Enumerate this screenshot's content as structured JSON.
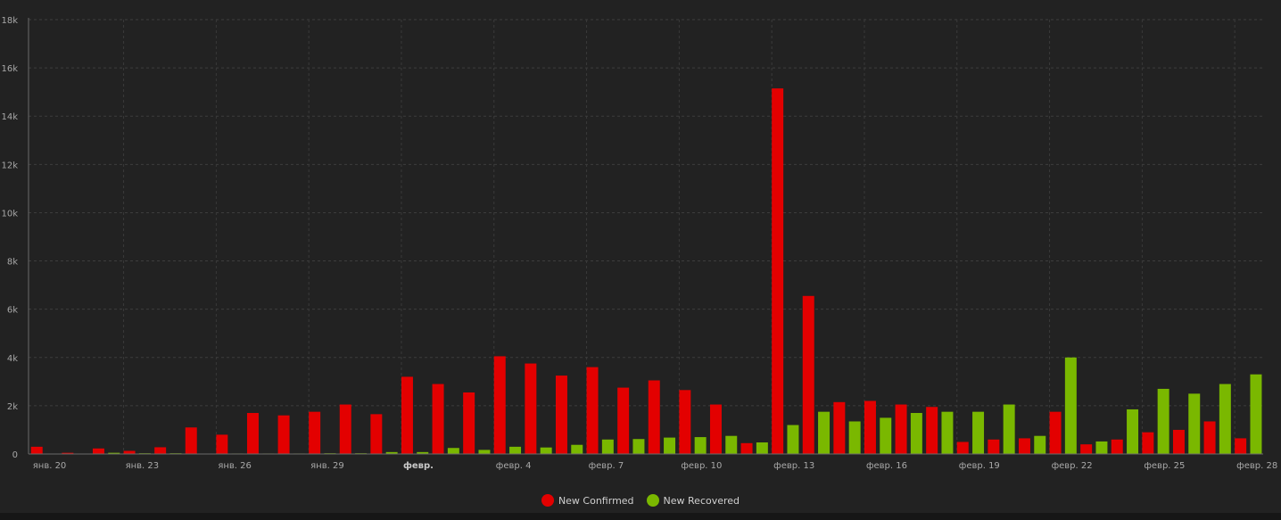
{
  "chart_data": {
    "type": "bar",
    "x": [
      "янв. 20",
      "янв. 21",
      "янв. 22",
      "янв. 23",
      "янв. 24",
      "янв. 25",
      "янв. 26",
      "янв. 27",
      "янв. 28",
      "янв. 29",
      "янв. 30",
      "янв. 31",
      "февр. 1",
      "февр. 2",
      "февр. 3",
      "февр. 4",
      "февр. 5",
      "февр. 6",
      "февр. 7",
      "февр. 8",
      "февр. 9",
      "февр. 10",
      "февр. 11",
      "февр. 12",
      "февр. 13",
      "февр. 14",
      "февр. 15",
      "февр. 16",
      "февр. 17",
      "февр. 18",
      "февр. 19",
      "февр. 20",
      "февр. 21",
      "февр. 22",
      "февр. 23",
      "февр. 24",
      "февр. 25",
      "февр. 26",
      "февр. 27",
      "февр. 28"
    ],
    "tick_labels": [
      "янв. 20",
      "янв. 23",
      "янв. 26",
      "янв. 29",
      "февр.",
      "февр. 4",
      "февр. 7",
      "февр. 10",
      "февр. 13",
      "февр. 16",
      "февр. 19",
      "февр. 22",
      "февр. 25",
      "февр. 28"
    ],
    "series": [
      {
        "name": "New Confirmed",
        "color": "#e30000",
        "values": [
          300,
          50,
          230,
          130,
          280,
          1100,
          800,
          1700,
          1600,
          1750,
          2050,
          1650,
          3200,
          2900,
          2550,
          4050,
          3750,
          3250,
          3600,
          2750,
          3050,
          2650,
          2050,
          450,
          15150,
          6550,
          2150,
          2200,
          2050,
          1950,
          500,
          600,
          650,
          1750,
          400,
          600,
          900,
          1000,
          1350,
          650
        ]
      },
      {
        "name": "New Recovered",
        "color": "#7ab800",
        "values": [
          0,
          0,
          50,
          30,
          30,
          10,
          20,
          20,
          20,
          30,
          30,
          80,
          80,
          250,
          170,
          300,
          270,
          380,
          600,
          620,
          680,
          700,
          750,
          480,
          1200,
          1750,
          1350,
          1500,
          1700,
          1750,
          1750,
          2050,
          750,
          4000,
          520,
          1850,
          2700,
          2500,
          2900,
          3300
        ]
      }
    ],
    "yticks": [
      "0",
      "2k",
      "4k",
      "6k",
      "8k",
      "10k",
      "12k",
      "14k",
      "16k",
      "18k"
    ],
    "ylim": [
      0,
      18000
    ],
    "grid": true,
    "legend": "bottom-center"
  }
}
